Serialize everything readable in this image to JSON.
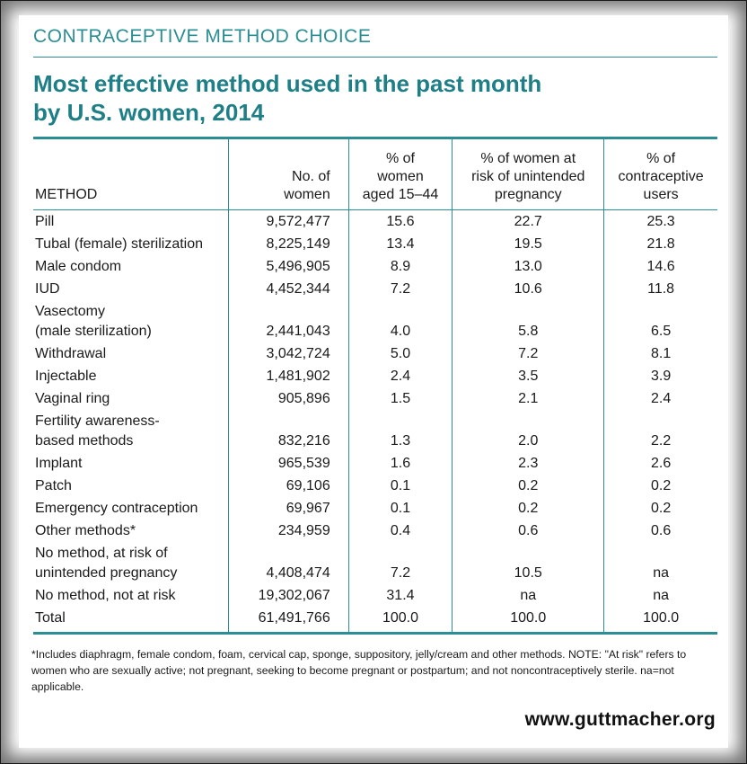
{
  "header": {
    "kicker": "CONTRACEPTIVE METHOD CHOICE",
    "title_line1": "Most effective method used in the past month",
    "title_line2": "by U.S. women, 2014"
  },
  "chart_data": {
    "type": "table",
    "columns": [
      {
        "key": "method",
        "label": "METHOD"
      },
      {
        "key": "count",
        "label": "No. of women"
      },
      {
        "key": "pct_women",
        "label": "% of women aged 15–44"
      },
      {
        "key": "pct_risk",
        "label": "% of women at risk of unintended pregnancy"
      },
      {
        "key": "pct_users",
        "label": "% of contraceptive users"
      }
    ],
    "rows": [
      {
        "method": "Pill",
        "count": "9,572,477",
        "pct_women": "15.6",
        "pct_risk": "22.7",
        "pct_users": "25.3"
      },
      {
        "method": "Tubal (female) sterilization",
        "count": "8,225,149",
        "pct_women": "13.4",
        "pct_risk": "19.5",
        "pct_users": "21.8"
      },
      {
        "method": "Male condom",
        "count": "5,496,905",
        "pct_women": "8.9",
        "pct_risk": "13.0",
        "pct_users": "14.6"
      },
      {
        "method": "IUD",
        "count": "4,452,344",
        "pct_women": "7.2",
        "pct_risk": "10.6",
        "pct_users": "11.8"
      },
      {
        "method": "Vasectomy\n(male sterilization)",
        "count": "2,441,043",
        "pct_women": "4.0",
        "pct_risk": "5.8",
        "pct_users": "6.5"
      },
      {
        "method": "Withdrawal",
        "count": "3,042,724",
        "pct_women": "5.0",
        "pct_risk": "7.2",
        "pct_users": "8.1"
      },
      {
        "method": "Injectable",
        "count": "1,481,902",
        "pct_women": "2.4",
        "pct_risk": "3.5",
        "pct_users": "3.9"
      },
      {
        "method": "Vaginal ring",
        "count": "905,896",
        "pct_women": "1.5",
        "pct_risk": "2.1",
        "pct_users": "2.4"
      },
      {
        "method": "Fertility awareness-\nbased methods",
        "count": "832,216",
        "pct_women": "1.3",
        "pct_risk": "2.0",
        "pct_users": "2.2"
      },
      {
        "method": "Implant",
        "count": "965,539",
        "pct_women": "1.6",
        "pct_risk": "2.3",
        "pct_users": "2.6"
      },
      {
        "method": "Patch",
        "count": "69,106",
        "pct_women": "0.1",
        "pct_risk": "0.2",
        "pct_users": "0.2"
      },
      {
        "method": "Emergency contraception",
        "count": "69,967",
        "pct_women": "0.1",
        "pct_risk": "0.2",
        "pct_users": "0.2"
      },
      {
        "method": "Other methods*",
        "count": "234,959",
        "pct_women": "0.4",
        "pct_risk": "0.6",
        "pct_users": "0.6"
      },
      {
        "method": "No method, at risk of\nunintended pregnancy",
        "count": "4,408,474",
        "pct_women": "7.2",
        "pct_risk": "10.5",
        "pct_users": "na"
      },
      {
        "method": "No method, not at risk",
        "count": "19,302,067",
        "pct_women": "31.4",
        "pct_risk": "na",
        "pct_users": "na"
      },
      {
        "method": "Total",
        "count": "61,491,766",
        "pct_women": "100.0",
        "pct_risk": "100.0",
        "pct_users": "100.0"
      }
    ]
  },
  "footnote": "*Includes diaphragm, female condom, foam, cervical cap, sponge, suppository, jelly/cream and other methods. NOTE: \"At risk\" refers to women who are sexually active; not pregnant, seeking to become pregnant or postpartum; and not noncontraceptively sterile. na=not applicable.",
  "source": "www.guttmacher.org",
  "colors": {
    "accent": "#2b8e93",
    "title": "#1f7f86",
    "text": "#1a1a1a"
  }
}
